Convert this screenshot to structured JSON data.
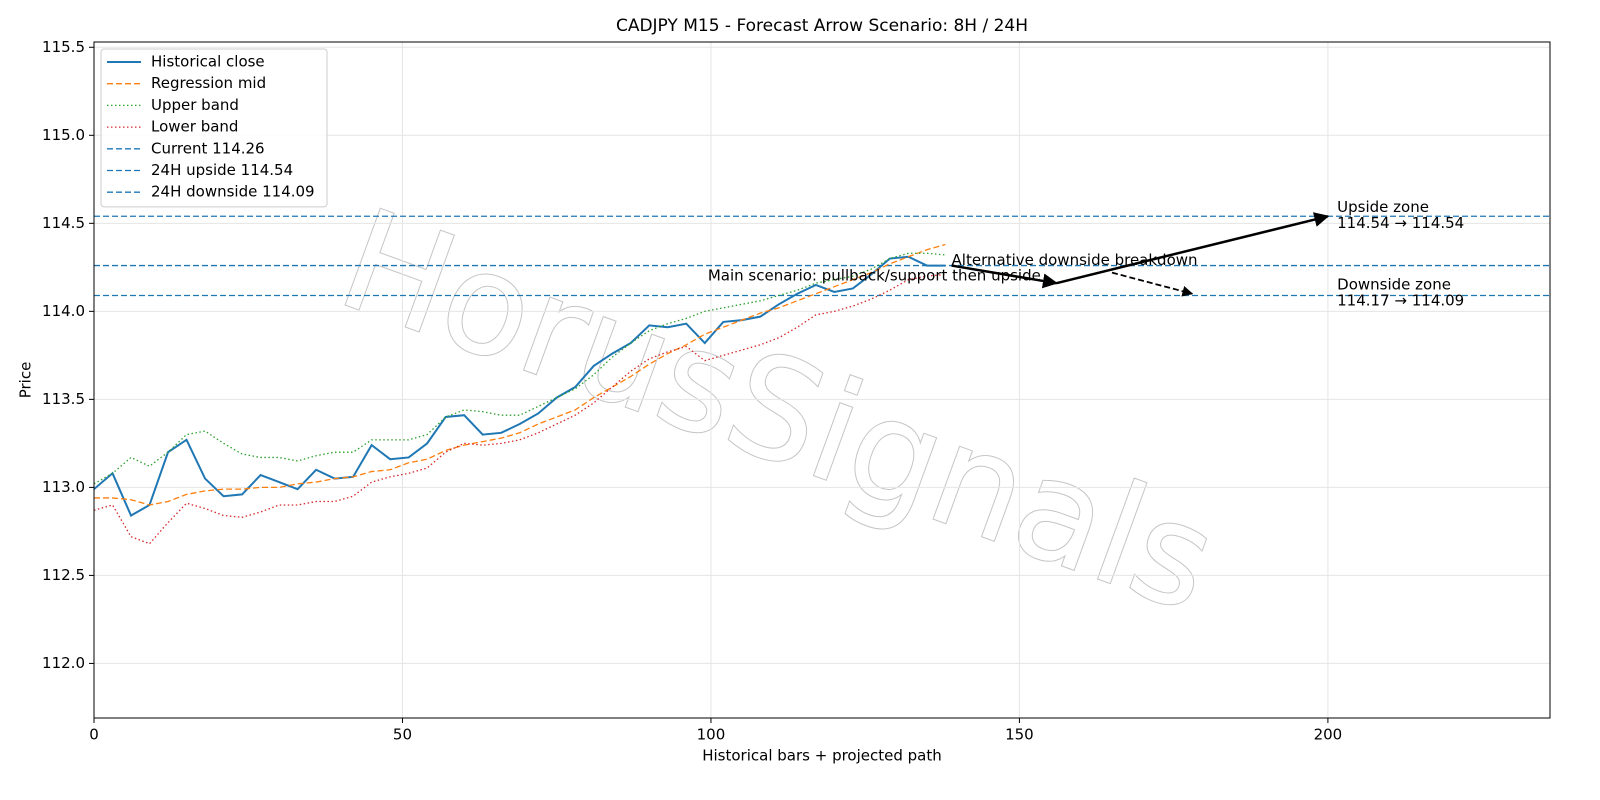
{
  "chart_data": {
    "type": "line",
    "title": "CADJPY M15 - Forecast Arrow Scenario: 8H / 24H",
    "xlabel": "Historical bars + projected path",
    "ylabel": "Price",
    "watermark": "HorusSignals",
    "xlim": [
      0,
      236
    ],
    "ylim": [
      111.69,
      115.53
    ],
    "xticks": [
      0,
      50,
      100,
      150,
      200
    ],
    "yticks": [
      {
        "value": 112,
        "label": "112.0"
      },
      112.5,
      {
        "value": 113,
        "label": "113.0"
      },
      113.5,
      {
        "value": 114,
        "label": "114.0"
      },
      114.5,
      {
        "value": 115,
        "label": "115.0"
      },
      115.5
    ],
    "grid": true,
    "legend": "upper left",
    "x": [
      0,
      3,
      6,
      9,
      12,
      15,
      18,
      21,
      24,
      27,
      30,
      33,
      36,
      39,
      42,
      45,
      48,
      51,
      54,
      57,
      60,
      63,
      66,
      69,
      72,
      75,
      78,
      81,
      84,
      87,
      90,
      93,
      96,
      99,
      102,
      105,
      108,
      111,
      114,
      117,
      120,
      123,
      126,
      129,
      132,
      135,
      138
    ],
    "series": [
      {
        "name": "Historical close",
        "color": "#1f77b4",
        "dash": "solid",
        "values": [
          112.99,
          113.08,
          112.84,
          112.9,
          113.2,
          113.27,
          113.05,
          112.95,
          112.96,
          113.07,
          113.03,
          112.99,
          113.1,
          113.05,
          113.06,
          113.24,
          113.16,
          113.17,
          113.25,
          113.4,
          113.41,
          113.3,
          113.31,
          113.36,
          113.42,
          113.51,
          113.57,
          113.69,
          113.76,
          113.82,
          113.92,
          113.91,
          113.93,
          113.82,
          113.94,
          113.95,
          113.97,
          114.04,
          114.1,
          114.15,
          114.11,
          114.13,
          114.21,
          114.3,
          114.31,
          114.26,
          114.26
        ]
      },
      {
        "name": "Regression mid",
        "color": "#ff7f0e",
        "dash": "dashed",
        "values": [
          112.94,
          112.94,
          112.93,
          112.9,
          112.92,
          112.96,
          112.98,
          112.99,
          112.99,
          113.0,
          113.0,
          113.02,
          113.03,
          113.05,
          113.06,
          113.09,
          113.1,
          113.14,
          113.16,
          113.21,
          113.24,
          113.26,
          113.28,
          113.31,
          113.36,
          113.4,
          113.44,
          113.51,
          113.57,
          113.63,
          113.7,
          113.76,
          113.81,
          113.87,
          113.91,
          113.95,
          113.99,
          114.02,
          114.06,
          114.1,
          114.14,
          114.18,
          114.22,
          114.27,
          114.31,
          114.35,
          114.38
        ]
      },
      {
        "name": "Upper band",
        "color": "#2ca02c",
        "dash": "dotted",
        "values": [
          113.02,
          113.08,
          113.17,
          113.12,
          113.2,
          113.3,
          113.32,
          113.25,
          113.19,
          113.17,
          113.17,
          113.15,
          113.18,
          113.2,
          113.2,
          113.27,
          113.27,
          113.27,
          113.3,
          113.4,
          113.44,
          113.43,
          113.41,
          113.41,
          113.46,
          113.51,
          113.56,
          113.64,
          113.74,
          113.82,
          113.89,
          113.93,
          113.96,
          114.0,
          114.02,
          114.04,
          114.06,
          114.09,
          114.12,
          114.16,
          114.18,
          114.2,
          114.24,
          114.3,
          114.33,
          114.33,
          114.32
        ]
      },
      {
        "name": "Lower band",
        "color": "#d62728",
        "dash": "dotted",
        "values": [
          112.87,
          112.9,
          112.72,
          112.68,
          112.8,
          112.91,
          112.88,
          112.84,
          112.83,
          112.86,
          112.9,
          112.9,
          112.92,
          112.92,
          112.95,
          113.03,
          113.06,
          113.08,
          113.11,
          113.2,
          113.25,
          113.24,
          113.25,
          113.27,
          113.31,
          113.36,
          113.41,
          113.48,
          113.57,
          113.66,
          113.73,
          113.77,
          113.8,
          113.72,
          113.75,
          113.78,
          113.81,
          113.85,
          113.91,
          113.98,
          114.0,
          114.03,
          114.07,
          114.12,
          114.18,
          114.2,
          114.21
        ]
      }
    ],
    "hlines": [
      {
        "name": "Current 114.26",
        "value": 114.26,
        "color": "#1f77b4"
      },
      {
        "name": "24H upside 114.54",
        "value": 114.54,
        "color": "#1f77b4"
      },
      {
        "name": "24H downside 114.09",
        "value": 114.09,
        "color": "#1f77b4"
      }
    ],
    "arrows": [
      {
        "x": [
          139,
          156
        ],
        "y": [
          114.26,
          114.16
        ],
        "style": "solid"
      },
      {
        "x": [
          156,
          200
        ],
        "y": [
          114.16,
          114.54
        ],
        "style": "solid"
      },
      {
        "x": [
          165,
          178
        ],
        "y": [
          114.22,
          114.1
        ],
        "style": "dashed"
      }
    ],
    "annotations": [
      {
        "lines": [
          "Main scenario: pullback/support then upside"
        ],
        "x": 99.5,
        "y": 114.2
      },
      {
        "lines": [
          "Alternative downside breakdown"
        ],
        "x": 139,
        "y": 114.29
      },
      {
        "lines": [
          "Upside zone",
          "114.54 → 114.54"
        ],
        "x": 201.5,
        "y": 114.59
      },
      {
        "lines": [
          "Downside zone",
          "114.17 → 114.09"
        ],
        "x": 201.5,
        "y": 114.15
      }
    ]
  }
}
